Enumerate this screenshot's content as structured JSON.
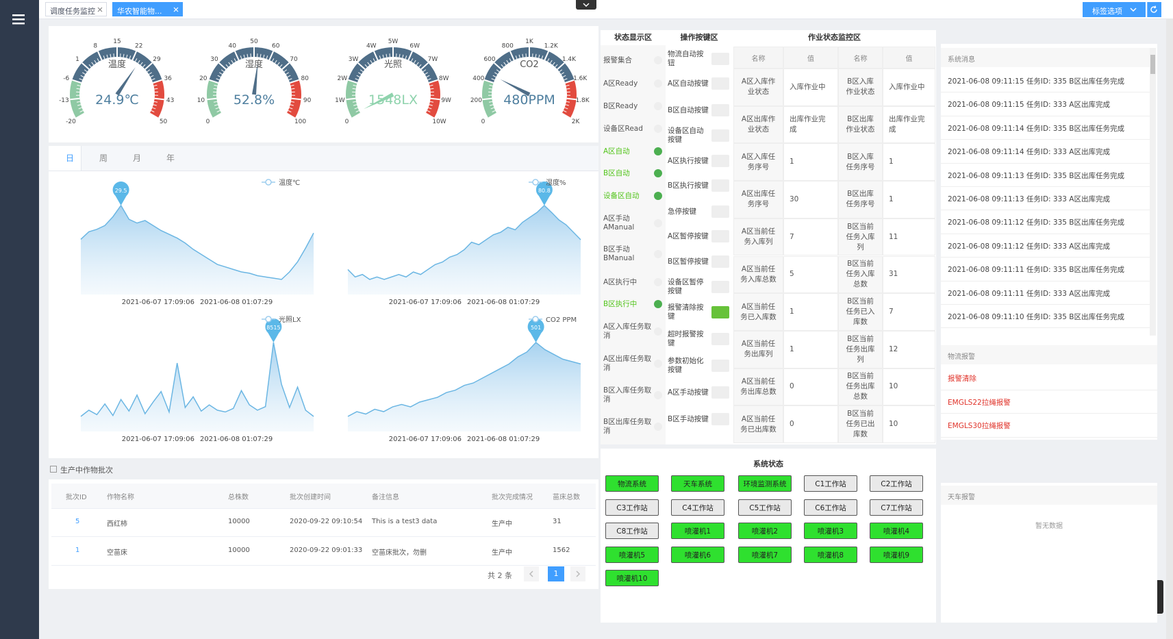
{
  "tabs": [
    "调度任务监控",
    "华农智能物..."
  ],
  "tab_options": "标签选项",
  "gauges": [
    {
      "label": "温度",
      "value": 24.9,
      "value_label": "24.9℃",
      "ticks": [
        -20,
        -13,
        -6,
        1,
        8,
        15,
        22,
        29,
        36,
        43,
        50
      ]
    },
    {
      "label": "湿度",
      "value": 52.8,
      "value_label": "52.8%",
      "ticks": [
        0,
        10,
        20,
        30,
        40,
        50,
        60,
        70,
        80,
        90,
        100
      ]
    },
    {
      "label": "光照",
      "value": 1548,
      "value_label": "1548LX",
      "ticks": [
        0,
        {
          "value": 10000,
          "label": "1W"
        },
        {
          "value": 20000,
          "label": "2W"
        },
        {
          "value": 30000,
          "label": "3W"
        },
        {
          "value": 40000,
          "label": "4W"
        },
        {
          "value": 50000,
          "label": "5W"
        },
        {
          "value": 60000,
          "label": "6W"
        },
        {
          "value": 70000,
          "label": "7W"
        },
        {
          "value": 80000,
          "label": "8W"
        },
        {
          "value": 90000,
          "label": "9W"
        },
        {
          "value": 100000,
          "label": "10W"
        }
      ]
    },
    {
      "label": "CO2",
      "value": 480,
      "value_label": "480PPM",
      "ticks": [
        0,
        200,
        400,
        600,
        800,
        {
          "value": 1000,
          "label": "1K"
        },
        {
          "value": 1200,
          "label": "1.2K"
        },
        {
          "value": 1400,
          "label": "1.4K"
        },
        {
          "value": 1600,
          "label": "1.6K"
        },
        {
          "value": 1800,
          "label": "1.8K"
        },
        {
          "value": 2000,
          "label": "2K"
        }
      ]
    }
  ],
  "trend": {
    "periods": [
      "日",
      "周",
      "月",
      "年"
    ],
    "charts": [
      {
        "legend": "温度℃",
        "peak": 29.5,
        "x_start": "2021-06-07 17:09:06",
        "x_end": "2021-06-08 01:07:29",
        "values": [
          26.8,
          27.4,
          27.6,
          27.9,
          28.6,
          29.5,
          28.4,
          28.1,
          28.3,
          27.9,
          27.5,
          27.2,
          26.9,
          26.5,
          26.0,
          25.6,
          25.2,
          24.8,
          24.6,
          24.4,
          24.2,
          24.1,
          23.9,
          23.8,
          23.7,
          23.6,
          24.2,
          25.0,
          26.1,
          27.3
        ]
      },
      {
        "legend": "湿度%",
        "peak": 80.8,
        "x_start": "2021-06-07 17:09:06",
        "x_end": "2021-06-08 01:07:29",
        "values": [
          55,
          52,
          53,
          51,
          52,
          51,
          52,
          53,
          52,
          54,
          53,
          55,
          57,
          58,
          60,
          61,
          63,
          66,
          65,
          67,
          69,
          70,
          72,
          71,
          74,
          76,
          78,
          80.8,
          78,
          75,
          73,
          70,
          67
        ]
      },
      {
        "legend": "光照LX",
        "peak": 8515,
        "x_start": "2021-06-07 17:09:06",
        "x_end": "2021-06-08 01:07:29",
        "values": [
          200,
          900,
          400,
          1600,
          300,
          2100,
          800,
          2600,
          500,
          1800,
          3000,
          700,
          6200,
          1200,
          2400,
          800,
          1500,
          900,
          700,
          1100,
          3100,
          1500,
          900,
          1300,
          8515,
          3800,
          1200,
          3500,
          900,
          200
        ]
      },
      {
        "legend": "CO2 PPM",
        "peak": 501,
        "x_start": "2021-06-07 17:09:06",
        "x_end": "2021-06-08 01:07:29",
        "values": [
          470,
          472,
          471,
          473,
          472,
          474,
          475,
          474,
          476,
          477,
          478,
          480,
          481,
          483,
          484,
          486,
          488,
          490,
          492,
          495,
          497,
          501,
          498,
          496,
          494,
          493,
          492
        ]
      }
    ]
  },
  "batches": {
    "title": "生产中作物批次",
    "columns": [
      "批次ID",
      "作物名称",
      "总株数",
      "批次创建时间",
      "备注信息",
      "批次完成情况",
      "苗床总数"
    ],
    "rows": [
      [
        5,
        "西红柿",
        10000,
        "2020-09-22 09:10:54",
        "This is a test3 data",
        "生产中",
        31
      ],
      [
        1,
        "空苗床",
        10000,
        "2020-09-22 09:01:33",
        "空苗床批次，勿删",
        "生产中",
        1562
      ]
    ],
    "total": "共 2 条",
    "page": 1
  },
  "status": {
    "title": "状态显示区",
    "items": [
      {
        "label": "报警集合",
        "on": false
      },
      {
        "label": "A区Ready",
        "on": false
      },
      {
        "label": "B区Ready",
        "on": false
      },
      {
        "label": "设备区Read",
        "on": false
      },
      {
        "label": "A区自动",
        "on": true
      },
      {
        "label": "B区自动",
        "on": true
      },
      {
        "label": "设备区自动",
        "on": true
      },
      {
        "label": "A区手动AManual",
        "on": false
      },
      {
        "label": "B区手动BManual",
        "on": false
      },
      {
        "label": "A区执行中",
        "on": false
      },
      {
        "label": "B区执行中",
        "on": true
      },
      {
        "label": "A区入库任务取消",
        "on": false
      },
      {
        "label": "A区出库任务取消",
        "on": false
      },
      {
        "label": "B区入库任务取消",
        "on": false
      },
      {
        "label": "B区出库任务取消",
        "on": false
      }
    ]
  },
  "buttons": {
    "title": "操作按键区",
    "items": [
      {
        "label": "物流自动按钮",
        "on": false
      },
      {
        "label": "A区自动按键",
        "on": false
      },
      {
        "label": "B区自动按键",
        "on": false
      },
      {
        "label": "设备区自动按键",
        "on": false
      },
      {
        "label": "A区执行按键",
        "on": false
      },
      {
        "label": "B区执行按键",
        "on": false
      },
      {
        "label": "急停按键",
        "on": false
      },
      {
        "label": "A区暂停按键",
        "on": false
      },
      {
        "label": "B区暂停按键",
        "on": false
      },
      {
        "label": "设备区暂停按键",
        "on": false
      },
      {
        "label": "报警清除按键",
        "on": true
      },
      {
        "label": "超时报警按键",
        "on": false
      },
      {
        "label": "参数初始化按键",
        "on": false
      },
      {
        "label": "A区手动按键",
        "on": false
      },
      {
        "label": "B区手动按键",
        "on": false
      }
    ]
  },
  "monitor": {
    "title": "作业状态监控区",
    "columns": [
      "名称",
      "值",
      "名称",
      "值"
    ],
    "rows": [
      [
        "A区入库作业状态",
        "入库作业中",
        "B区入库作业状态",
        "入库作业中"
      ],
      [
        "A区出库作业状态",
        "出库作业完成",
        "B区出库作业状态",
        "出库作业完成"
      ],
      [
        "A区入库任务序号",
        1,
        "B区入库任务序号",
        1
      ],
      [
        "A区出库任务序号",
        30,
        "B区出库任务序号",
        1
      ],
      [
        "A区当前任务入库列",
        7,
        "B区当前任务入库列",
        11
      ],
      [
        "A区当前任务入库总数",
        5,
        "B区当前任务入库总数",
        31
      ],
      [
        "A区当前任务已入库数",
        1,
        "B区当前任务已入库数",
        7
      ],
      [
        "A区当前任务出库列",
        1,
        "B区当前任务出库列",
        12
      ],
      [
        "A区当前任务出库总数",
        0,
        "B区当前任务出库总数",
        10
      ],
      [
        "A区当前任务已出库数",
        0,
        "B区当前任务已出库数",
        10
      ]
    ]
  },
  "system": {
    "title": "系统状态",
    "items": [
      {
        "label": "物流系统",
        "on": true
      },
      {
        "label": "天车系统",
        "on": true
      },
      {
        "label": "环境监测系统",
        "on": true
      },
      {
        "label": "C1工作站",
        "on": false
      },
      {
        "label": "C2工作站",
        "on": false
      },
      {
        "label": "C3工作站",
        "on": false
      },
      {
        "label": "C4工作站",
        "on": false
      },
      {
        "label": "C5工作站",
        "on": false
      },
      {
        "label": "C6工作站",
        "on": false
      },
      {
        "label": "C7工作站",
        "on": false
      },
      {
        "label": "C8工作站",
        "on": false
      },
      {
        "label": "喷灌机1",
        "on": true
      },
      {
        "label": "喷灌机2",
        "on": true
      },
      {
        "label": "喷灌机3",
        "on": true
      },
      {
        "label": "喷灌机4",
        "on": true
      },
      {
        "label": "喷灌机5",
        "on": true
      },
      {
        "label": "喷灌机6",
        "on": true
      },
      {
        "label": "喷灌机7",
        "on": true
      },
      {
        "label": "喷灌机8",
        "on": true
      },
      {
        "label": "喷灌机9",
        "on": true
      },
      {
        "label": "喷灌机10",
        "on": true
      }
    ]
  },
  "messages": {
    "title": "系统消息",
    "items": [
      "2021-06-08 09:11:15 任务ID: 335 B区出库任务完成",
      "2021-06-08 09:11:15 任务ID: 333 A区出库完成",
      "2021-06-08 09:11:14 任务ID: 335 B区出库任务完成",
      "2021-06-08 09:11:14 任务ID: 333 A区出库完成",
      "2021-06-08 09:11:13 任务ID: 335 B区出库任务完成",
      "2021-06-08 09:11:13 任务ID: 333 A区出库完成",
      "2021-06-08 09:11:12 任务ID: 335 B区出库任务完成",
      "2021-06-08 09:11:12 任务ID: 333 A区出库完成",
      "2021-06-08 09:11:11 任务ID: 335 B区出库任务完成",
      "2021-06-08 09:11:11 任务ID: 333 A区出库完成",
      "2021-06-08 09:11:10 任务ID: 335 B区出库任务完成"
    ]
  },
  "logistics_alarms": {
    "title": "物流报警",
    "items": [
      "报警清除",
      "EMGLS22拉绳报警",
      "EMGLS30拉绳报警"
    ]
  },
  "crane_alarms": {
    "title": "天车报警",
    "empty": "暂无数据"
  }
}
